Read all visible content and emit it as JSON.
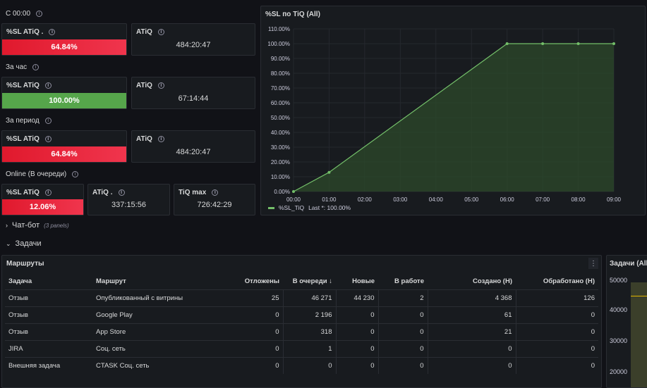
{
  "sections": {
    "s1": "С 00:00",
    "s2": "За час",
    "s3": "За период",
    "s4": "Online (В очереди)"
  },
  "stats": {
    "r1_sl_title": "%SL ATiQ .",
    "r1_sl_value": "64.84%",
    "r1_atiq_title": "ATiQ",
    "r1_atiq_value": "484:20:47",
    "r2_sl_title": "%SL ATiQ",
    "r2_sl_value": "100.00%",
    "r2_atiq_title": "ATiQ",
    "r2_atiq_value": "67:14:44",
    "r3_sl_title": "%SL ATiQ",
    "r3_sl_value": "64.84%",
    "r3_atiq_title": "ATiQ",
    "r3_atiq_value": "484:20:47",
    "r4_sl_title": "%SL ATiQ",
    "r4_sl_value": "12.06%",
    "r4_atiq_title": "ATiQ .",
    "r4_atiq_value": "337:15:56",
    "r4_tiq_title": "TiQ max",
    "r4_tiq_value": "726:42:29"
  },
  "chart_panel": {
    "title": "%SL по TiQ (All)",
    "legend_name": "%SL_TiQ",
    "legend_last": "Last *: 100.00%"
  },
  "chart_data": {
    "type": "area",
    "x": [
      "00:00",
      "01:00",
      "02:00",
      "03:00",
      "04:00",
      "05:00",
      "06:00",
      "07:00",
      "08:00",
      "09:00"
    ],
    "points": [
      {
        "x": "00:00",
        "y": 0
      },
      {
        "x": "01:00",
        "y": 13
      },
      {
        "x": "06:00",
        "y": 100
      },
      {
        "x": "07:00",
        "y": 100
      },
      {
        "x": "08:00",
        "y": 100
      },
      {
        "x": "09:00",
        "y": 100
      }
    ],
    "y_ticks": [
      "0.00%",
      "10.00%",
      "20.00%",
      "30.00%",
      "40.00%",
      "50.00%",
      "60.00%",
      "70.00%",
      "80.00%",
      "90.00%",
      "100.00%",
      "110.00%"
    ],
    "ylim": [
      0,
      110
    ],
    "line_color": "#73bf69",
    "fill_color": "#2c4a2b"
  },
  "rows": {
    "chatbot_label": "Чат-бот",
    "chatbot_count": "(3 panels)",
    "tasks_label": "Задачи"
  },
  "routes": {
    "title": "Маршруты",
    "menu_icon": "⋮",
    "headers": [
      "Задача",
      "Маршрут",
      "Отложены",
      "В очереди ↓",
      "Новые",
      "В работе",
      "Создано (Н)",
      "Обработано (Н)"
    ],
    "rows": [
      [
        "Отзыв",
        "Опубликованный с витрины",
        "25",
        "46 271",
        "44 230",
        "2",
        "4 368",
        "126"
      ],
      [
        "Отзыв",
        "Google Play",
        "0",
        "2 196",
        "0",
        "0",
        "61",
        "0"
      ],
      [
        "Отзыв",
        "App Store",
        "0",
        "318",
        "0",
        "0",
        "21",
        "0"
      ],
      [
        "JIRA",
        "Соц. сеть",
        "0",
        "1",
        "0",
        "0",
        "0",
        "0"
      ],
      [
        "Внешняя задача",
        "CTASK Соц. сеть",
        "0",
        "0",
        "0",
        "0",
        "0",
        "0"
      ]
    ]
  },
  "tasks_chart": {
    "title": "Задачи (All",
    "y_ticks": [
      "50000",
      "40000",
      "30000",
      "20000"
    ]
  },
  "colors": {
    "bg": "#111217",
    "panel": "#181b1f",
    "red": "#e0192d",
    "green": "#56a64b",
    "accent_line": "#73bf69"
  }
}
